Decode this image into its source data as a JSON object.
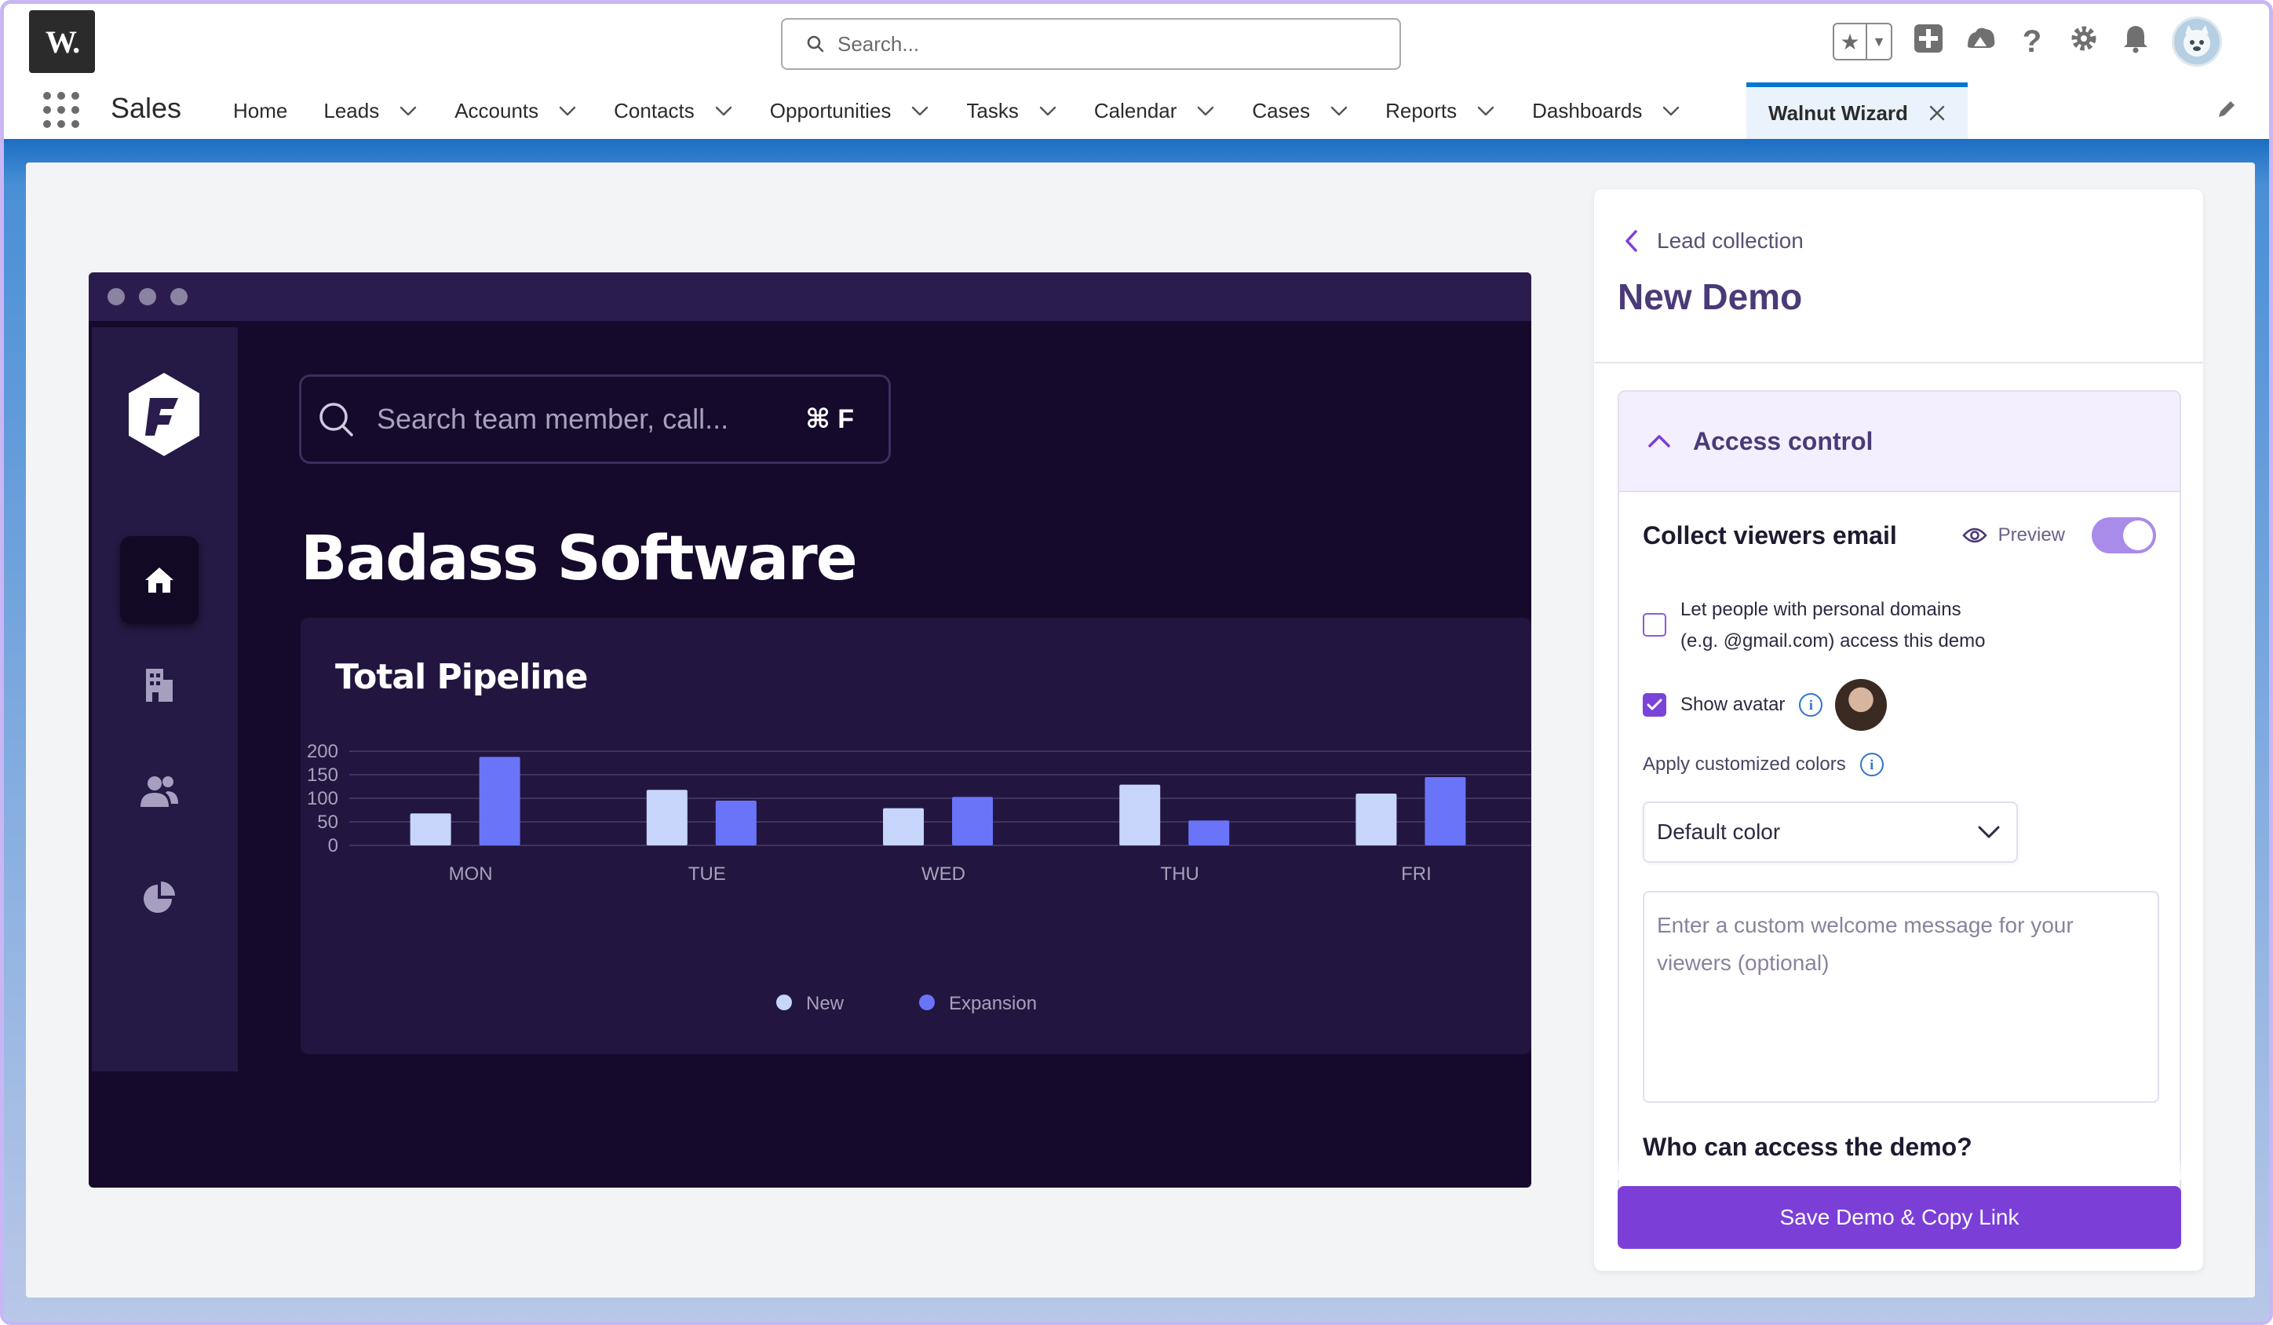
{
  "header": {
    "logo_text": "W.",
    "search_placeholder": "Search...",
    "icons": [
      "favorites-star-icon",
      "favorites-dropdown-icon",
      "add-icon",
      "trailhead-icon",
      "help-icon",
      "setup-gear-icon",
      "notifications-bell-icon",
      "user-avatar"
    ]
  },
  "nav": {
    "app_name": "Sales",
    "items": [
      {
        "label": "Home",
        "has_menu": false
      },
      {
        "label": "Leads",
        "has_menu": true
      },
      {
        "label": "Accounts",
        "has_menu": true
      },
      {
        "label": "Contacts",
        "has_menu": true
      },
      {
        "label": "Opportunities",
        "has_menu": true
      },
      {
        "label": "Tasks",
        "has_menu": true
      },
      {
        "label": "Calendar",
        "has_menu": true
      },
      {
        "label": "Cases",
        "has_menu": true
      },
      {
        "label": "Reports",
        "has_menu": true
      },
      {
        "label": "Dashboards",
        "has_menu": true
      }
    ],
    "active_tab": "Walnut Wizard"
  },
  "demo": {
    "search_placeholder": "Search team member, call...",
    "shortcut": "⌘ F",
    "company_name": "Badass Software",
    "rail_icons": [
      "home-icon",
      "building-icon",
      "team-icon",
      "pie-chart-icon"
    ]
  },
  "chart_data": {
    "type": "bar",
    "title": "Total Pipeline",
    "categories": [
      "MON",
      "TUE",
      "WED",
      "THU",
      "FRI"
    ],
    "series": [
      {
        "name": "New",
        "values": [
          68,
          118,
          79,
          129,
          110
        ],
        "color": "#c7d5fb"
      },
      {
        "name": "Expansion",
        "values": [
          188,
          95,
          103,
          53,
          145
        ],
        "color": "#6a74f8"
      }
    ],
    "y_ticks": [
      0,
      50,
      100,
      150,
      200
    ],
    "ylim": [
      0,
      200
    ],
    "grid": true,
    "legend": "bottom-center"
  },
  "panel": {
    "back_label": "Lead collection",
    "title": "New Demo",
    "section_title": "Access control",
    "collect_label": "Collect viewers email",
    "preview_label": "Preview",
    "collect_enabled": true,
    "personal_domains_line1": "Let people with personal domains",
    "personal_domains_line2": "(e.g. @gmail.com) access this demo",
    "personal_domains_checked": false,
    "show_avatar_label": "Show avatar",
    "show_avatar_checked": true,
    "colors_label": "Apply customized colors",
    "color_select_value": "Default color",
    "welcome_placeholder": "Enter a custom welcome message for your viewers (optional)",
    "who_access_label": "Who can access the demo?",
    "save_button": "Save Demo & Copy Link",
    "accent": "#7b3fd8"
  }
}
